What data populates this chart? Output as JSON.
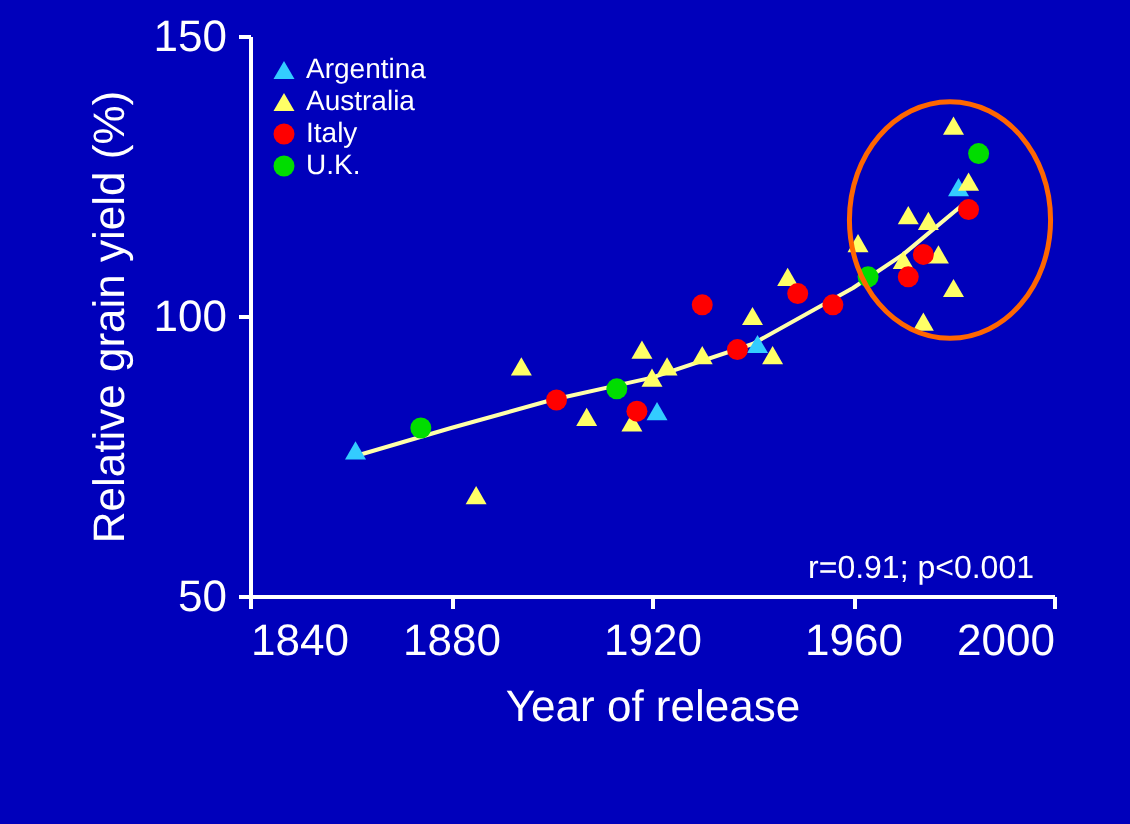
{
  "chart_data": {
    "type": "scatter",
    "xlabel": "Year of release",
    "ylabel": "Relative grain yield (%)",
    "xlim": [
      1840,
      2000
    ],
    "xticks": [
      1840,
      1880,
      1920,
      1960,
      2000
    ],
    "ylim": [
      50,
      150
    ],
    "yticks": [
      50,
      100,
      150
    ],
    "grid": false,
    "legend": "top left",
    "annotations": [
      "r=0.91; p<0.001"
    ],
    "series": [
      {
        "name": "Argentina",
        "color": "#33ccff",
        "marker": "triangle",
        "x": [
          1861,
          1921,
          1941,
          1981
        ],
        "values": [
          76,
          83,
          95,
          123
        ]
      },
      {
        "name": "Australia",
        "color": "#ffff66",
        "marker": "triangle",
        "x": [
          1885,
          1894,
          1907,
          1916,
          1918,
          1920,
          1923,
          1930,
          1940,
          1944,
          1947,
          1961,
          1970,
          1971,
          1974,
          1975,
          1977,
          1980,
          1980,
          1983
        ],
        "values": [
          68,
          91,
          82,
          81,
          94,
          89,
          91,
          93,
          100,
          93,
          107,
          113,
          110,
          118,
          99,
          117,
          111,
          105,
          134,
          124
        ]
      },
      {
        "name": "Italy",
        "color": "#ff0000",
        "marker": "circle",
        "x": [
          1901,
          1917,
          1930,
          1937,
          1949,
          1956,
          1971,
          1974,
          1983
        ],
        "values": [
          85,
          83,
          102,
          94,
          104,
          102,
          107,
          111,
          119
        ]
      },
      {
        "name": "U.K.",
        "color": "#00dd00",
        "marker": "circle",
        "x": [
          1874,
          1913,
          1963,
          1985
        ],
        "values": [
          80,
          87,
          107,
          129
        ]
      },
      {
        "type": "line",
        "color": "#ffffaa",
        "x": [
          1861,
          1880,
          1900,
          1920,
          1940,
          1960,
          1970,
          1982
        ],
        "values": [
          75,
          80,
          85,
          89,
          95,
          105,
          111,
          120
        ]
      }
    ]
  }
}
